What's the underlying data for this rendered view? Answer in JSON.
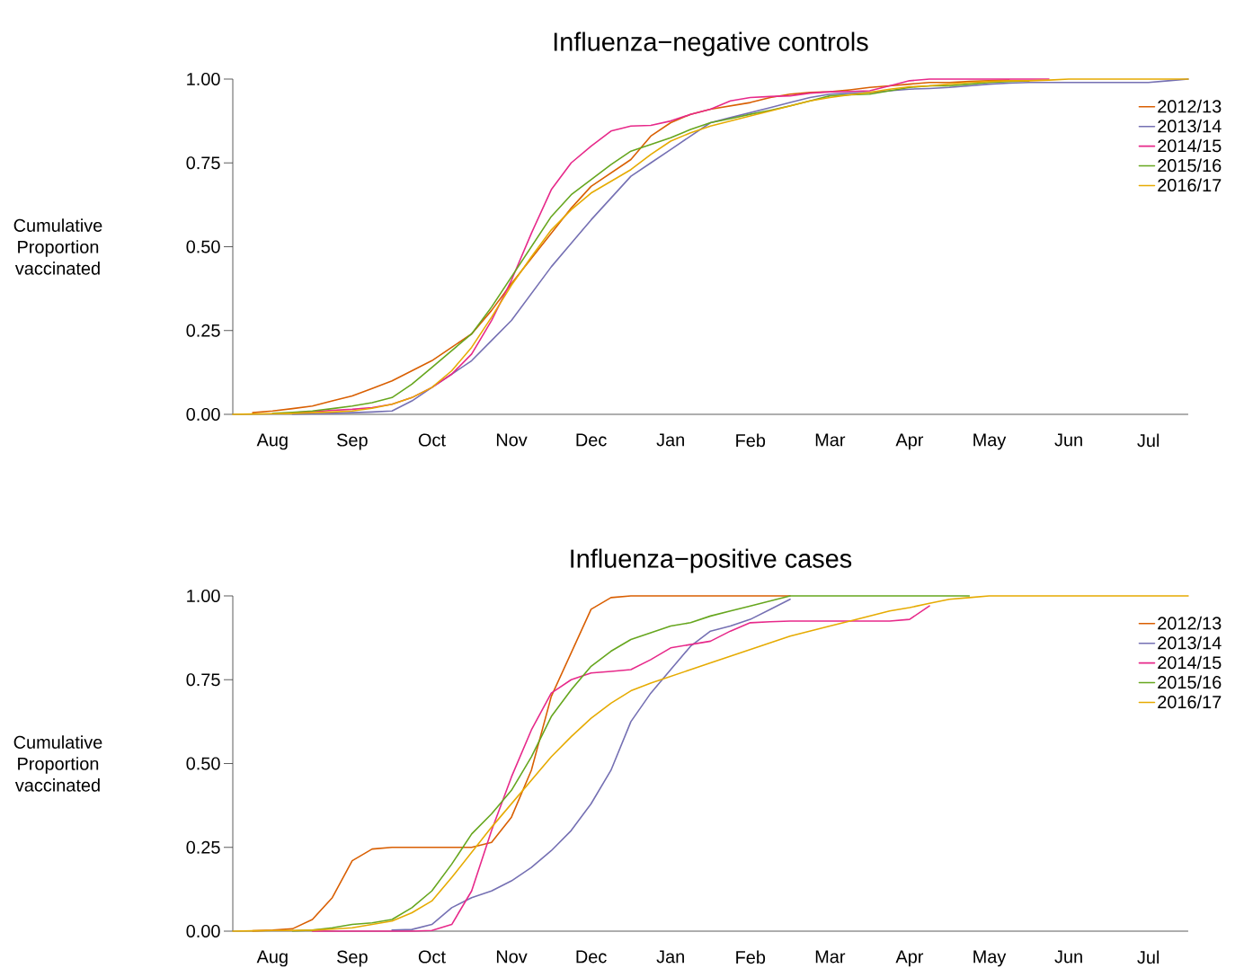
{
  "chart_data": [
    {
      "type": "line",
      "title": "Influenza−negative controls",
      "ylabel": "Cumulative Proportion vaccinated",
      "categories": [
        null,
        null,
        "Aug",
        null,
        null,
        null,
        "Sep",
        null,
        null,
        null,
        "Oct",
        null,
        null,
        null,
        "Nov",
        null,
        null,
        null,
        "Dec",
        null,
        null,
        null,
        "Jan",
        null,
        null,
        null,
        "Feb",
        null,
        null,
        null,
        "Mar",
        null,
        null,
        null,
        "Apr",
        null,
        null,
        null,
        "May",
        null,
        null,
        null,
        "Jun",
        null,
        null,
        null,
        "Jul",
        null,
        null
      ],
      "series": [
        {
          "name": "2012/13",
          "color": "#d95f02",
          "values": [
            null,
            0.005,
            0.01,
            0.017,
            0.025,
            0.04,
            0.055,
            0.077,
            0.1,
            0.13,
            0.16,
            0.2,
            0.24,
            0.31,
            0.39,
            0.465,
            0.54,
            0.615,
            0.68,
            0.72,
            0.76,
            0.83,
            0.87,
            0.895,
            0.91,
            0.92,
            0.93,
            0.945,
            0.955,
            0.96,
            0.962,
            0.968,
            0.975,
            0.98,
            0.985,
            0.99,
            0.99,
            0.993,
            0.995,
            0.997,
            null,
            null,
            null,
            null,
            null,
            null,
            null,
            null,
            null
          ]
        },
        {
          "name": "2013/14",
          "color": "#7570b3",
          "values": [
            null,
            null,
            null,
            0.001,
            0.002,
            0.003,
            0.005,
            0.007,
            0.01,
            0.04,
            0.08,
            0.12,
            0.16,
            0.22,
            0.28,
            0.36,
            0.44,
            0.51,
            0.58,
            0.645,
            0.71,
            0.75,
            0.79,
            0.83,
            0.87,
            0.885,
            0.9,
            0.915,
            0.93,
            0.945,
            0.955,
            0.958,
            0.96,
            0.965,
            0.97,
            0.972,
            0.975,
            0.98,
            0.985,
            0.988,
            0.99,
            0.99,
            0.99,
            0.99,
            0.99,
            0.99,
            0.99,
            0.995,
            1
          ]
        },
        {
          "name": "2014/15",
          "color": "#e7298a",
          "values": [
            null,
            null,
            null,
            0.005,
            0.008,
            0.012,
            0.015,
            0.02,
            0.03,
            0.05,
            0.08,
            0.12,
            0.18,
            0.28,
            0.4,
            0.54,
            0.67,
            0.75,
            0.8,
            0.845,
            0.86,
            0.862,
            0.875,
            0.895,
            0.91,
            0.935,
            0.945,
            0.948,
            0.95,
            0.958,
            0.962,
            0.963,
            0.965,
            0.98,
            0.995,
            1,
            1,
            1,
            1,
            1,
            1,
            1,
            null,
            null,
            null,
            null,
            null,
            null,
            null
          ]
        },
        {
          "name": "2015/16",
          "color": "#66a61e",
          "values": [
            null,
            null,
            0.003,
            0.006,
            0.01,
            0.017,
            0.025,
            0.035,
            0.05,
            0.09,
            0.14,
            0.19,
            0.24,
            0.32,
            0.41,
            0.5,
            0.59,
            0.655,
            0.7,
            0.745,
            0.785,
            0.805,
            0.825,
            0.85,
            0.87,
            0.882,
            0.895,
            0.907,
            0.92,
            0.935,
            0.95,
            0.953,
            0.955,
            0.965,
            0.975,
            0.98,
            0.98,
            0.985,
            0.99,
            0.993,
            0.995,
            null,
            null,
            null,
            null,
            null,
            null,
            null,
            null
          ]
        },
        {
          "name": "2016/17",
          "color": "#e6ab02",
          "values": [
            0,
            0.001,
            0.002,
            0.003,
            0.005,
            0.007,
            0.01,
            0.018,
            0.03,
            0.05,
            0.08,
            0.13,
            0.2,
            0.29,
            0.385,
            0.47,
            0.55,
            0.61,
            0.66,
            0.695,
            0.73,
            0.775,
            0.815,
            0.84,
            0.86,
            0.875,
            0.89,
            0.905,
            0.92,
            0.935,
            0.945,
            0.953,
            0.96,
            0.97,
            0.977,
            0.98,
            0.985,
            0.99,
            0.993,
            0.995,
            0.995,
            0.997,
            1,
            1,
            1,
            1,
            1,
            1,
            1
          ]
        }
      ],
      "ylim": [
        0,
        1
      ],
      "yticks": [
        {
          "value": 0,
          "label": "0.00"
        },
        {
          "value": 0.25,
          "label": "0.25"
        },
        {
          "value": 0.5,
          "label": "0.50"
        },
        {
          "value": 0.75,
          "label": "0.75"
        },
        {
          "value": 1,
          "label": "1.00"
        }
      ],
      "legend": "top right",
      "grid": false,
      "line_style": "solid"
    },
    {
      "type": "line",
      "title": "Influenza−positive cases",
      "ylabel": "Cumulative Proportion vaccinated",
      "categories": [
        null,
        null,
        "Aug",
        null,
        null,
        null,
        "Sep",
        null,
        null,
        null,
        "Oct",
        null,
        null,
        null,
        "Nov",
        null,
        null,
        null,
        "Dec",
        null,
        null,
        null,
        "Jan",
        null,
        null,
        null,
        "Feb",
        null,
        null,
        null,
        "Mar",
        null,
        null,
        null,
        "Apr",
        null,
        null,
        null,
        "May",
        null,
        null,
        null,
        "Jun",
        null,
        null,
        null,
        "Jul",
        null,
        null
      ],
      "series": [
        {
          "name": "2012/13",
          "color": "#d95f02",
          "values": [
            null,
            0.001,
            0.003,
            0.007,
            0.035,
            0.1,
            0.21,
            0.245,
            0.25,
            0.25,
            0.25,
            0.25,
            0.25,
            0.265,
            0.34,
            0.48,
            0.7,
            0.83,
            0.96,
            0.995,
            1,
            1,
            1,
            1,
            1,
            1,
            1,
            1,
            1,
            null,
            null,
            null,
            null,
            null,
            null,
            null,
            null,
            null,
            null,
            null,
            null,
            null,
            null,
            null,
            null,
            null,
            null,
            null,
            null
          ]
        },
        {
          "name": "2013/14",
          "color": "#7570b3",
          "values": [
            null,
            null,
            null,
            null,
            null,
            null,
            null,
            null,
            0.003,
            0.005,
            0.02,
            0.07,
            0.1,
            0.12,
            0.15,
            0.19,
            0.24,
            0.3,
            0.38,
            0.48,
            0.625,
            0.71,
            0.78,
            0.85,
            0.895,
            0.91,
            0.93,
            0.96,
            0.99,
            null,
            null,
            null,
            null,
            null,
            null,
            null,
            null,
            null,
            null,
            null,
            null,
            null,
            null,
            null,
            null,
            null,
            null,
            null,
            null
          ]
        },
        {
          "name": "2014/15",
          "color": "#e7298a",
          "values": [
            null,
            null,
            null,
            null,
            0,
            0,
            0,
            0,
            0,
            0,
            0.002,
            0.02,
            0.12,
            0.3,
            0.46,
            0.6,
            0.71,
            0.75,
            0.77,
            0.775,
            0.78,
            0.81,
            0.845,
            0.855,
            0.865,
            0.895,
            0.92,
            0.923,
            0.925,
            0.925,
            0.925,
            0.925,
            0.925,
            0.925,
            0.93,
            0.97,
            null,
            null,
            null,
            null,
            null,
            null,
            null,
            null,
            null,
            null,
            null,
            null,
            null
          ]
        },
        {
          "name": "2015/16",
          "color": "#66a61e",
          "values": [
            null,
            null,
            null,
            0.001,
            0.003,
            0.01,
            0.02,
            0.025,
            0.035,
            0.07,
            0.12,
            0.2,
            0.29,
            0.35,
            0.42,
            0.52,
            0.64,
            0.72,
            0.79,
            0.835,
            0.87,
            0.89,
            0.91,
            0.92,
            0.94,
            0.955,
            0.97,
            0.985,
            1,
            1,
            1,
            1,
            1,
            1,
            1,
            1,
            1,
            1,
            null,
            null,
            null,
            null,
            null,
            null,
            null,
            null,
            null,
            null,
            null
          ]
        },
        {
          "name": "2016/17",
          "color": "#e6ab02",
          "values": [
            0,
            0.001,
            0.002,
            0.002,
            0.003,
            0.006,
            0.01,
            0.02,
            0.03,
            0.055,
            0.09,
            0.16,
            0.235,
            0.31,
            0.38,
            0.45,
            0.52,
            0.58,
            0.635,
            0.68,
            0.717,
            0.74,
            0.76,
            0.78,
            0.8,
            0.82,
            0.84,
            0.86,
            0.88,
            0.895,
            0.91,
            0.925,
            0.94,
            0.955,
            0.965,
            0.978,
            0.99,
            0.995,
            1,
            1,
            1,
            1,
            1,
            1,
            1,
            1,
            1,
            1,
            1
          ]
        }
      ],
      "ylim": [
        0,
        1
      ],
      "yticks": [
        {
          "value": 0,
          "label": "0.00"
        },
        {
          "value": 0.25,
          "label": "0.25"
        },
        {
          "value": 0.5,
          "label": "0.50"
        },
        {
          "value": 0.75,
          "label": "0.75"
        },
        {
          "value": 1,
          "label": "1.00"
        }
      ],
      "legend": "top right",
      "grid": false,
      "line_style": "solid"
    }
  ]
}
